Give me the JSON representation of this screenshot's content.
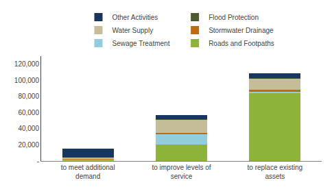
{
  "chart_data": {
    "type": "bar",
    "categories": [
      "to meet additional\ndemand",
      "to improve levels of\nservice",
      "to replace existing\nassets"
    ],
    "series": [
      {
        "name": "Roads and Footpaths",
        "color": "#8DB33A",
        "values": [
          1000,
          20000,
          84000
        ]
      },
      {
        "name": "Sewage Treatment",
        "color": "#92CDDC",
        "values": [
          1500,
          13000,
          2000
        ]
      },
      {
        "name": "Stormwater Drainage",
        "color": "#BE6B16",
        "values": [
          500,
          2000,
          2000
        ]
      },
      {
        "name": "Water Supply",
        "color": "#C4BD97",
        "values": [
          1500,
          16000,
          14000
        ]
      },
      {
        "name": "Flood Protection",
        "color": "#4C5B30",
        "values": [
          100,
          500,
          500
        ]
      },
      {
        "name": "Other Activities",
        "color": "#17375E",
        "values": [
          11000,
          5500,
          6000
        ]
      }
    ],
    "ylim": [
      0,
      130000
    ],
    "yticks": [
      {
        "value": 0,
        "label": "-"
      },
      {
        "value": 20000,
        "label": "20,000"
      },
      {
        "value": 40000,
        "label": "40,000"
      },
      {
        "value": 60000,
        "label": "60,000"
      },
      {
        "value": 80000,
        "label": "80,000"
      },
      {
        "value": 100000,
        "label": "100,000"
      },
      {
        "value": 120000,
        "label": "120,000"
      }
    ],
    "stacked": true,
    "grid": false,
    "legend": "top"
  }
}
